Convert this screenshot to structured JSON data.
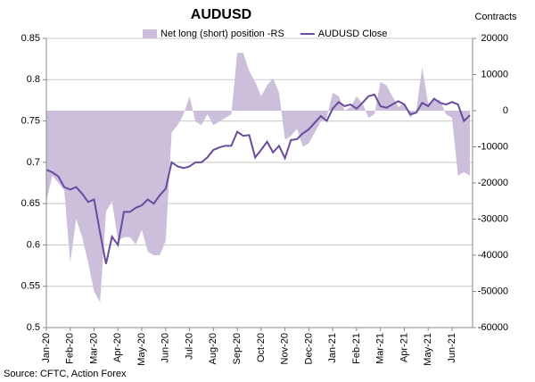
{
  "chart_data": {
    "type": "combo",
    "title": "AUDUSD",
    "y2_axis_label": "Contracts",
    "source": "Source: CFTC, Action Forex",
    "categories": [
      "Jan-20",
      null,
      null,
      null,
      "Feb-20",
      null,
      null,
      null,
      "Mar-20",
      null,
      null,
      null,
      "Apr-20",
      null,
      null,
      null,
      "May-20",
      null,
      null,
      null,
      "Jun-20",
      null,
      null,
      null,
      "Jul-20",
      null,
      null,
      null,
      "Aug-20",
      null,
      null,
      null,
      "Sep-20",
      null,
      null,
      null,
      "Oct-20",
      null,
      null,
      null,
      "Nov-20",
      null,
      null,
      null,
      "Dec-20",
      null,
      null,
      null,
      "Jan-21",
      null,
      null,
      null,
      "Feb-21",
      null,
      null,
      null,
      "Mar-21",
      null,
      null,
      null,
      "Apr-21",
      null,
      null,
      null,
      "May-21",
      null,
      null,
      null,
      "Jun-21",
      null,
      null,
      null
    ],
    "series": [
      {
        "name": "Net long (short) position -RS",
        "type": "area",
        "axis": "y2",
        "color": "#cbbfdc",
        "values": [
          -25000,
          -18000,
          -20000,
          -22000,
          -42000,
          -30000,
          -35000,
          -42000,
          -50000,
          -53000,
          -28000,
          -25000,
          -36000,
          -35000,
          -35000,
          -37000,
          -33000,
          -39000,
          -40000,
          -40000,
          -36000,
          -6000,
          -4000,
          -1000,
          4000,
          -3000,
          -4000,
          -1000,
          -4000,
          -3000,
          -2000,
          -1000,
          16000,
          16000,
          11000,
          8000,
          4000,
          7000,
          9000,
          5000,
          -8000,
          -7000,
          -5000,
          -10000,
          -9000,
          -6000,
          -3000,
          -2000,
          5000,
          4000,
          0,
          1000,
          4000,
          2000,
          -2000,
          -1000,
          8000,
          7000,
          4000,
          1000,
          2000,
          -2000,
          0,
          12000,
          2000,
          3000,
          3000,
          -1000,
          -2000,
          -18000,
          -17000,
          -18000
        ]
      },
      {
        "name": "AUDUSD Close",
        "type": "line",
        "color": "#6a4a9c",
        "values": [
          0.691,
          0.688,
          0.683,
          0.67,
          0.667,
          0.67,
          0.662,
          0.652,
          0.655,
          0.615,
          0.577,
          0.61,
          0.6,
          0.64,
          0.64,
          0.645,
          0.648,
          0.655,
          0.65,
          0.66,
          0.668,
          0.7,
          0.695,
          0.693,
          0.695,
          0.7,
          0.7,
          0.706,
          0.715,
          0.718,
          0.72,
          0.72,
          0.737,
          0.732,
          0.733,
          0.706,
          0.715,
          0.725,
          0.712,
          0.72,
          0.705,
          0.727,
          0.728,
          0.735,
          0.74,
          0.748,
          0.756,
          0.75,
          0.765,
          0.773,
          0.768,
          0.77,
          0.765,
          0.772,
          0.78,
          0.782,
          0.768,
          0.766,
          0.77,
          0.774,
          0.77,
          0.758,
          0.76,
          0.772,
          0.768,
          0.777,
          0.772,
          0.77,
          0.773,
          0.77,
          0.75,
          0.757
        ]
      }
    ],
    "ylim": [
      0.5,
      0.85
    ],
    "yticks": [
      0.5,
      0.55,
      0.6,
      0.65,
      0.7,
      0.75,
      0.8,
      0.85
    ],
    "y2lim": [
      -60000,
      20000
    ],
    "y2ticks": [
      -60000,
      -50000,
      -40000,
      -30000,
      -20000,
      -10000,
      0,
      10000,
      20000
    ],
    "grid": true,
    "legend": "top"
  }
}
